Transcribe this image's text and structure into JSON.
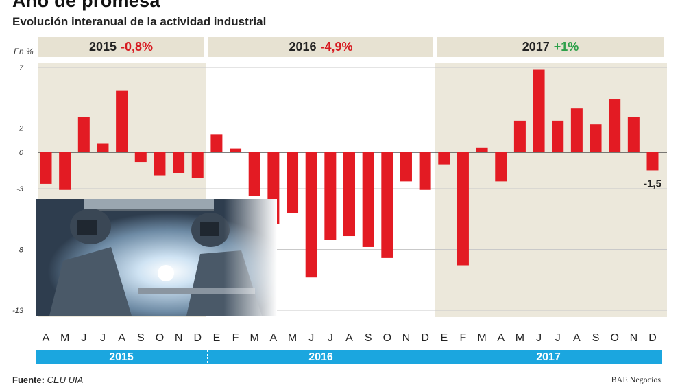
{
  "title": "Año de promesa",
  "subtitle": "Evolución interanual de la actividad industrial",
  "unit": "En %",
  "years": [
    {
      "year": "2015",
      "change": "-0,8%",
      "sign": "neg"
    },
    {
      "year": "2016",
      "change": "-4,9%",
      "sign": "neg"
    },
    {
      "year": "2017",
      "change": "+1%",
      "sign": "pos"
    }
  ],
  "source_label": "Fuente:",
  "source_value": "CEU UIA",
  "credit": "BAE Negocios",
  "photo": {
    "description": "welder",
    "icon": "welding-photo-icon"
  },
  "colors": {
    "bar": "#e31b23",
    "shade": "#ece8db",
    "year_bar": "#1ba6df",
    "positive": "#2ea04a",
    "negative": "#d71920"
  },
  "chart_data": {
    "type": "bar",
    "ylabel": "En %",
    "ylim": [
      -13,
      7
    ],
    "yticks": [
      7,
      2,
      0,
      -3,
      -8,
      -13
    ],
    "ytick_labels": [
      "7",
      "2",
      "0",
      "-3",
      "-8",
      "-13"
    ],
    "grid": true,
    "categories": [
      "A",
      "M",
      "J",
      "J",
      "A",
      "S",
      "O",
      "N",
      "D",
      "E",
      "F",
      "M",
      "A",
      "M",
      "J",
      "J",
      "A",
      "S",
      "O",
      "N",
      "D",
      "E",
      "F",
      "M",
      "A",
      "M",
      "J",
      "J",
      "A",
      "S",
      "O",
      "N",
      "D"
    ],
    "values": [
      -2.6,
      -3.1,
      2.9,
      0.7,
      5.1,
      -0.8,
      -1.9,
      -1.7,
      -2.1,
      1.5,
      0.3,
      -3.6,
      -5.9,
      -5.0,
      -10.3,
      -7.2,
      -6.9,
      -7.8,
      -8.7,
      -2.4,
      -3.1,
      -1.0,
      -9.3,
      0.4,
      -2.4,
      2.6,
      6.8,
      2.6,
      3.6,
      2.3,
      4.4,
      2.9,
      -1.5
    ],
    "year_groups": [
      {
        "label": "2015",
        "start": 0,
        "count": 9
      },
      {
        "label": "2016",
        "start": 9,
        "count": 12
      },
      {
        "label": "2017",
        "start": 21,
        "count": 12
      }
    ],
    "annotations": [
      {
        "index": 32,
        "text": "-1,5"
      }
    ]
  }
}
